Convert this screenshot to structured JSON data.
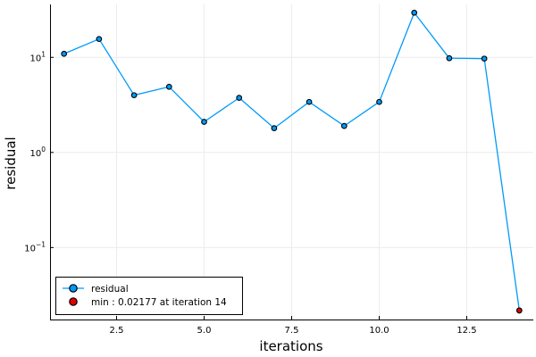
{
  "chart_data": {
    "type": "line",
    "title": "",
    "xlabel": "iterations",
    "ylabel": "residual",
    "xlim": [
      0.6,
      14.4
    ],
    "ylim": [
      0.0175,
      36
    ],
    "y_scale": "log10",
    "grid": true,
    "legend_position": "bottom-left",
    "x_ticks": [
      {
        "value": 2.5,
        "label": "2.5"
      },
      {
        "value": 5.0,
        "label": "5.0"
      },
      {
        "value": 7.5,
        "label": "7.5"
      },
      {
        "value": 10.0,
        "label": "10.0"
      },
      {
        "value": 12.5,
        "label": "12.5"
      }
    ],
    "y_ticks": [
      {
        "value": 0.1,
        "base": "10",
        "exp": "−1"
      },
      {
        "value": 1,
        "base": "10",
        "exp": "0"
      },
      {
        "value": 10,
        "base": "10",
        "exp": "1"
      }
    ],
    "series": [
      {
        "name": "residual",
        "color": "#009af9",
        "x": [
          1,
          2,
          3,
          4,
          5,
          6,
          7,
          8,
          9,
          10,
          11,
          12,
          13,
          14
        ],
        "y": [
          10.9,
          15.6,
          4.0,
          4.9,
          2.1,
          3.75,
          1.8,
          3.4,
          1.9,
          3.4,
          29.5,
          9.8,
          9.7,
          0.02177
        ]
      },
      {
        "name": "min : 0.02177 at iteration 14",
        "color": "#e30000",
        "x": [
          14
        ],
        "y": [
          0.02177
        ]
      }
    ]
  }
}
